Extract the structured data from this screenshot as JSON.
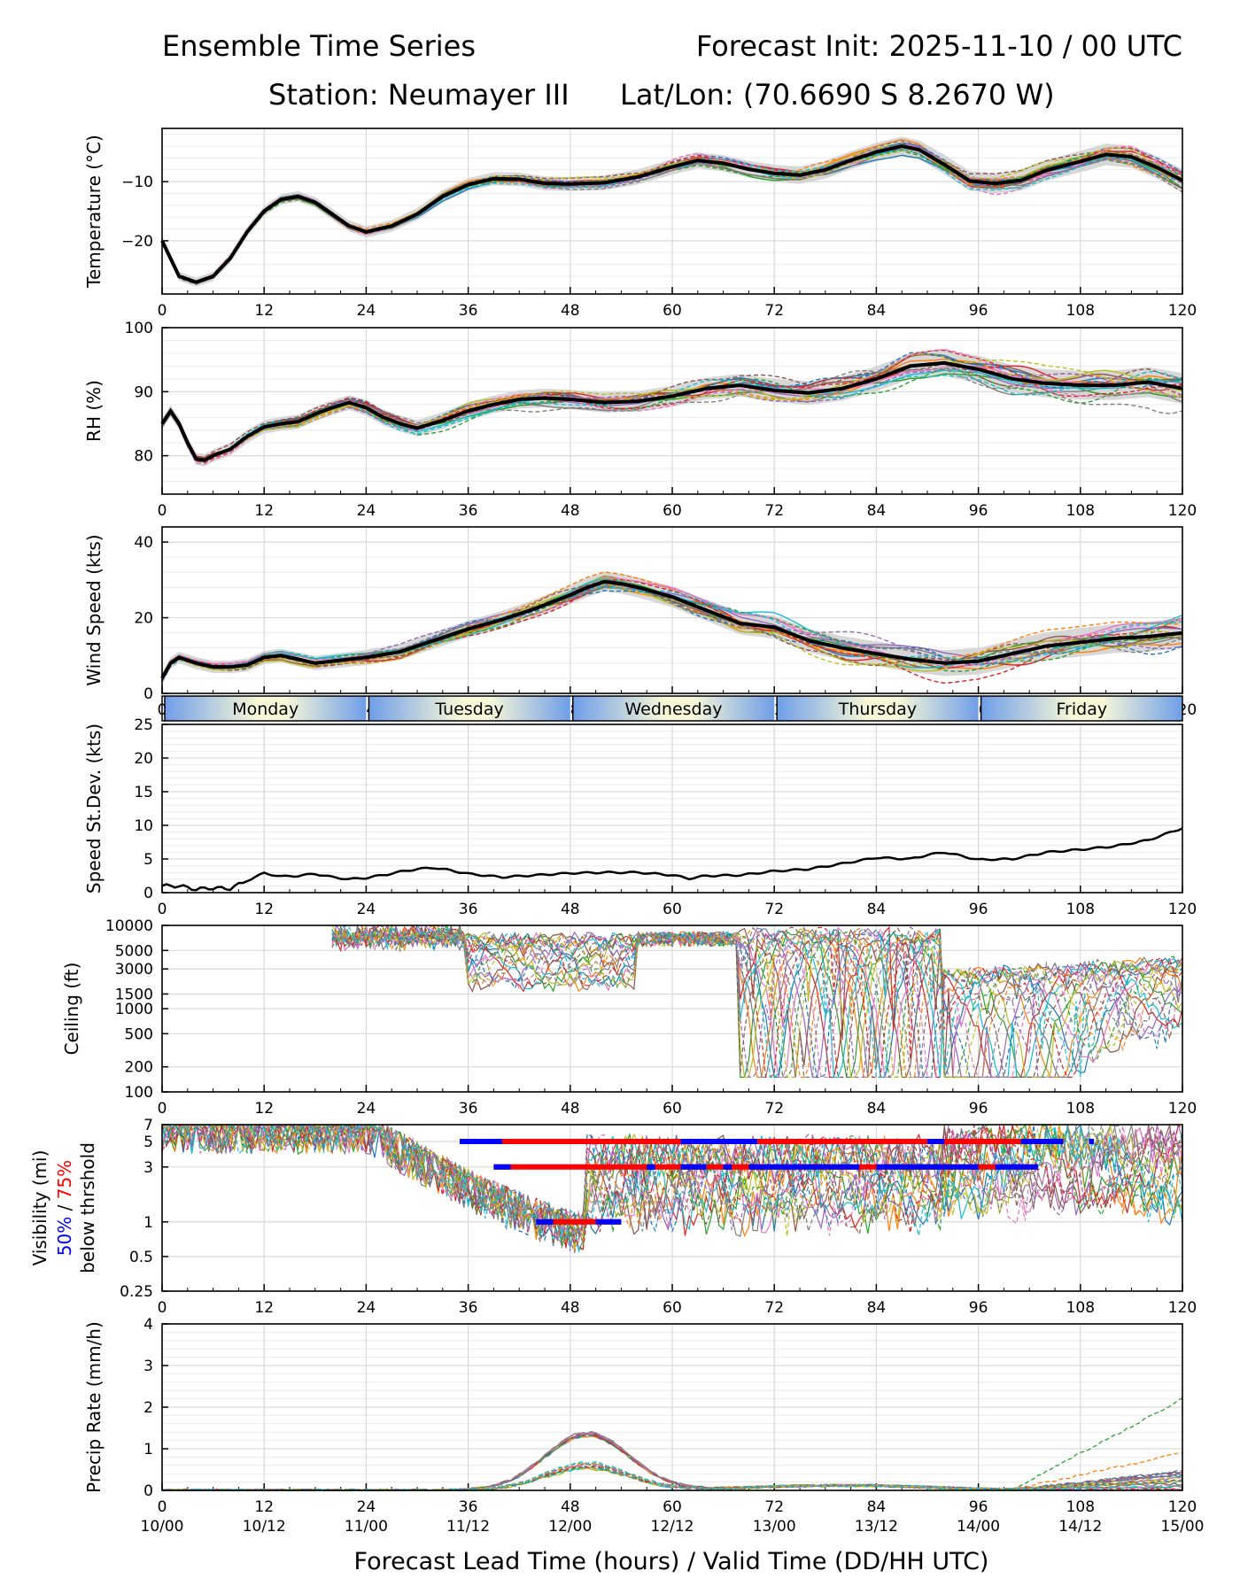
{
  "header": {
    "title_left": "Ensemble Time Series",
    "title_right": "Forecast Init: 2025-11-10 / 00 UTC",
    "station": "Station: Neumayer III",
    "latlon": "Lat/Lon: (70.6690 S 8.2670 W)"
  },
  "x_axis": {
    "ticks": [
      0,
      12,
      24,
      36,
      48,
      60,
      72,
      84,
      96,
      108,
      120
    ],
    "valid_labels": [
      "10/00",
      "10/12",
      "11/00",
      "11/12",
      "12/00",
      "12/12",
      "13/00",
      "13/12",
      "14/00",
      "14/12",
      "15/00"
    ],
    "xlabel": "Forecast Lead Time (hours) / Valid Time (DD/HH UTC)",
    "xlim": [
      0,
      120
    ]
  },
  "day_band": {
    "days": [
      {
        "label": "Monday",
        "start": 0,
        "end": 24
      },
      {
        "label": "Tuesday",
        "start": 24,
        "end": 48
      },
      {
        "label": "Wednesday",
        "start": 48,
        "end": 72
      },
      {
        "label": "Thursday",
        "start": 72,
        "end": 96
      },
      {
        "label": "Friday",
        "start": 96,
        "end": 120
      }
    ]
  },
  "chart_data": [
    {
      "id": "temperature",
      "type": "line",
      "ylabel": "Temperature (°C)",
      "ylim": [
        -29,
        -1
      ],
      "yticks": [
        -10,
        -20
      ],
      "ytick_labels": [
        "−10",
        "−20"
      ],
      "mean": {
        "x": [
          0,
          2,
          4,
          6,
          8,
          10,
          12,
          14,
          16,
          18,
          20,
          22,
          24,
          27,
          30,
          33,
          36,
          39,
          42,
          45,
          48,
          52,
          56,
          60,
          63,
          66,
          69,
          72,
          75,
          78,
          81,
          84,
          87,
          89,
          92,
          95,
          98,
          101,
          104,
          108,
          111,
          114,
          117,
          120
        ],
        "y": [
          -20,
          -26,
          -27,
          -26,
          -23,
          -18.5,
          -15,
          -13,
          -12.5,
          -13.5,
          -15.5,
          -17.5,
          -18.5,
          -17.5,
          -15.5,
          -12.5,
          -10.5,
          -9.5,
          -9.6,
          -10.3,
          -10.4,
          -10.2,
          -9.2,
          -7.5,
          -6.4,
          -6.9,
          -7.9,
          -8.6,
          -8.9,
          -8,
          -6.4,
          -5,
          -4,
          -4.6,
          -7.1,
          -9.9,
          -10.3,
          -9.8,
          -8.1,
          -6.6,
          -5.4,
          -5.8,
          -7.6,
          -9.8
        ]
      },
      "spread": 1.2,
      "noise": 1.4
    },
    {
      "id": "rh",
      "type": "line",
      "ylabel": "RH (%)",
      "ylim": [
        74,
        100
      ],
      "yticks": [
        80,
        90,
        100
      ],
      "ytick_labels": [
        "80",
        "90",
        "100"
      ],
      "mean": {
        "x": [
          0,
          1,
          2,
          3,
          4,
          5,
          6,
          8,
          10,
          12,
          14,
          16,
          18,
          20,
          22,
          24,
          26,
          28,
          30,
          33,
          36,
          39,
          42,
          45,
          48,
          52,
          56,
          60,
          64,
          68,
          72,
          76,
          80,
          84,
          88,
          92,
          96,
          100,
          104,
          108,
          112,
          116,
          120
        ],
        "y": [
          85,
          87,
          85,
          82,
          79.5,
          79.3,
          80,
          81,
          83,
          84.5,
          85,
          85.3,
          86.5,
          87.5,
          88.3,
          87.5,
          86,
          85,
          84.3,
          85.5,
          87,
          88,
          88.8,
          89,
          88.8,
          88.3,
          88.5,
          89.3,
          90.5,
          91,
          90.2,
          89.8,
          90.5,
          92,
          94,
          94.5,
          93.5,
          92,
          91.3,
          91,
          91,
          91.5,
          90.5
        ]
      },
      "spread": 1.5,
      "noise": 2.2
    },
    {
      "id": "wind",
      "type": "line",
      "ylabel": "Wind Speed (kts)",
      "ylim": [
        0,
        44
      ],
      "yticks": [
        0,
        20,
        40
      ],
      "ytick_labels": [
        "0",
        "20",
        "40"
      ],
      "mean": {
        "x": [
          0,
          1,
          2,
          4,
          6,
          8,
          10,
          12,
          14,
          16,
          18,
          20,
          22,
          24,
          28,
          32,
          36,
          40,
          44,
          48,
          50,
          52,
          54,
          56,
          60,
          64,
          68,
          72,
          76,
          80,
          84,
          88,
          92,
          96,
          100,
          104,
          108,
          112,
          116,
          120
        ],
        "y": [
          4,
          8,
          9.5,
          8,
          7,
          7,
          7.5,
          9.5,
          10,
          9,
          8,
          8.5,
          9,
          9.5,
          11,
          14,
          17,
          19.5,
          22.5,
          26,
          28,
          29.5,
          29,
          28,
          25.5,
          22,
          18.5,
          17.5,
          14,
          12,
          10.5,
          9,
          8,
          8.5,
          10.5,
          12.5,
          13.5,
          14.5,
          15,
          16
        ]
      },
      "spread": 2.5,
      "noise": 3.5
    },
    {
      "id": "speed_stdev",
      "type": "line",
      "ylabel": "Speed St.Dev. (kts)",
      "ylim": [
        0,
        25
      ],
      "yticks": [
        0,
        5,
        10,
        15,
        20,
        25
      ],
      "ytick_labels": [
        "0",
        "5",
        "10",
        "15",
        "20",
        "25"
      ],
      "series": [
        {
          "name": "std dev",
          "x": [
            0,
            2,
            4,
            6,
            8,
            10,
            12,
            14,
            16,
            18,
            20,
            22,
            24,
            26,
            28,
            30,
            32,
            34,
            36,
            40,
            44,
            48,
            52,
            56,
            60,
            62,
            64,
            68,
            72,
            76,
            80,
            84,
            88,
            90,
            92,
            96,
            100,
            104,
            108,
            112,
            116,
            120
          ],
          "y": [
            1,
            1,
            0.5,
            0.7,
            0.6,
            1.8,
            2.9,
            2.4,
            2.5,
            2.8,
            2.3,
            2.0,
            2.2,
            2.6,
            3.1,
            3.5,
            3.7,
            3.3,
            2.8,
            2.3,
            2.6,
            2.9,
            3.0,
            3.0,
            2.6,
            2.1,
            2.5,
            2.6,
            3.2,
            3.5,
            4.3,
            5.2,
            5.0,
            5.6,
            6.0,
            4.9,
            5.0,
            6.0,
            6.4,
            6.9,
            7.8,
            9.6
          ]
        }
      ]
    },
    {
      "id": "ceiling",
      "type": "line",
      "ylabel": "Ceiling (ft)",
      "yscale": "log",
      "ylim": [
        100,
        10000
      ],
      "yticks": [
        100,
        200,
        500,
        1000,
        1500,
        3000,
        5000,
        10000
      ],
      "ytick_labels": [
        "100",
        "200",
        "500",
        "1000",
        "1500",
        "3000",
        "5000",
        "10000"
      ]
    },
    {
      "id": "visibility",
      "type": "line",
      "yscale": "log",
      "ylabel_line1_prefix": "Visibility (mi)",
      "ylabel_50": "50%",
      "ylabel_sep": " / ",
      "ylabel_75": "75%",
      "ylabel_line2": "below thrshold",
      "ylim": [
        0.25,
        7
      ],
      "yticks": [
        0.25,
        0.5,
        1,
        3,
        5,
        7
      ],
      "ytick_labels": [
        "0.25",
        "0.5",
        "1",
        "3",
        "5",
        "7"
      ],
      "threshold_bars": [
        {
          "level": 5,
          "p75": [
            [
              38,
              106
            ]
          ],
          "p50": [
            [
              35,
              40
            ],
            [
              61,
              70
            ],
            [
              90,
              92
            ],
            [
              101,
              106
            ],
            [
              109,
              109.6
            ]
          ]
        },
        {
          "level": 3,
          "p75": [
            [
              39,
              103
            ]
          ],
          "p50": [
            [
              39,
              41
            ],
            [
              57,
              58
            ],
            [
              61,
              64
            ],
            [
              66,
              67
            ],
            [
              69,
              82
            ],
            [
              84,
              96
            ],
            [
              98,
              103
            ]
          ]
        },
        {
          "level": 1,
          "p75": [
            [
              44,
              54
            ]
          ],
          "p50": [
            [
              44,
              46
            ],
            [
              51,
              54
            ]
          ]
        }
      ]
    },
    {
      "id": "precip",
      "type": "line",
      "ylabel": "Precip Rate (mm/h)",
      "ylim": [
        0,
        4
      ],
      "yticks": [
        0,
        1,
        2,
        3,
        4
      ],
      "ytick_labels": [
        "0",
        "1",
        "2",
        "3",
        "4"
      ]
    }
  ]
}
